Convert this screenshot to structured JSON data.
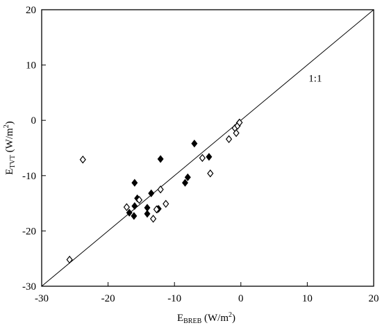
{
  "chart_data": {
    "type": "scatter",
    "xlabel": {
      "main": "E",
      "sub": "BREB",
      "unit": " (W/m",
      "sup": "2",
      "close": ")"
    },
    "ylabel": {
      "main": "E",
      "sub": "TVT",
      "unit": " (W/m",
      "sup": "2",
      "close": ")"
    },
    "xlim": [
      -30,
      20
    ],
    "ylim": [
      -30,
      20
    ],
    "xticks": [
      -30,
      -20,
      -10,
      0,
      10,
      20
    ],
    "yticks": [
      -30,
      -20,
      -10,
      0,
      10,
      20
    ],
    "xtick_labels": [
      "-30",
      "-20",
      "-10",
      "0",
      "10",
      "20"
    ],
    "ytick_labels": [
      "-30",
      "-20",
      "-10",
      "0",
      "10",
      "20"
    ],
    "grid": false,
    "reference_line": {
      "label": "1:1",
      "from": [
        -30,
        -30
      ],
      "to": [
        20,
        20
      ]
    },
    "annotation": {
      "text": "1:1",
      "x": 10.2,
      "y": 7
    },
    "series": [
      {
        "marker": "diamond-filled",
        "color": "#000000",
        "points": [
          {
            "x": -12.1,
            "y": -7.0
          },
          {
            "x": -7.0,
            "y": -4.2
          },
          {
            "x": -4.8,
            "y": -6.6
          },
          {
            "x": -8.0,
            "y": -10.3
          },
          {
            "x": -8.4,
            "y": -11.3
          },
          {
            "x": -16.0,
            "y": -11.3
          },
          {
            "x": -13.5,
            "y": -13.2
          },
          {
            "x": -15.6,
            "y": -14.1
          },
          {
            "x": -16.0,
            "y": -15.5
          },
          {
            "x": -14.1,
            "y": -15.8
          },
          {
            "x": -14.1,
            "y": -16.9
          },
          {
            "x": -12.6,
            "y": -16.1
          },
          {
            "x": -12.4,
            "y": -16.0
          },
          {
            "x": -16.8,
            "y": -16.7
          },
          {
            "x": -16.1,
            "y": -17.3
          },
          {
            "x": -0.3,
            "y": -0.5
          }
        ]
      },
      {
        "marker": "diamond-open",
        "color": "#000000",
        "points": [
          {
            "x": -23.8,
            "y": -7.1
          },
          {
            "x": -5.8,
            "y": -6.8
          },
          {
            "x": -4.6,
            "y": -9.6
          },
          {
            "x": -12.1,
            "y": -12.5
          },
          {
            "x": -15.3,
            "y": -14.4
          },
          {
            "x": -11.3,
            "y": -15.1
          },
          {
            "x": -17.2,
            "y": -15.7
          },
          {
            "x": -12.7,
            "y": -16.1
          },
          {
            "x": -13.2,
            "y": -17.8
          },
          {
            "x": -1.8,
            "y": -3.4
          },
          {
            "x": -0.9,
            "y": -1.4
          },
          {
            "x": -0.7,
            "y": -2.3
          },
          {
            "x": -0.5,
            "y": -1.0
          },
          {
            "x": -0.2,
            "y": -0.4
          },
          {
            "x": -25.8,
            "y": -25.2
          }
        ]
      }
    ]
  }
}
